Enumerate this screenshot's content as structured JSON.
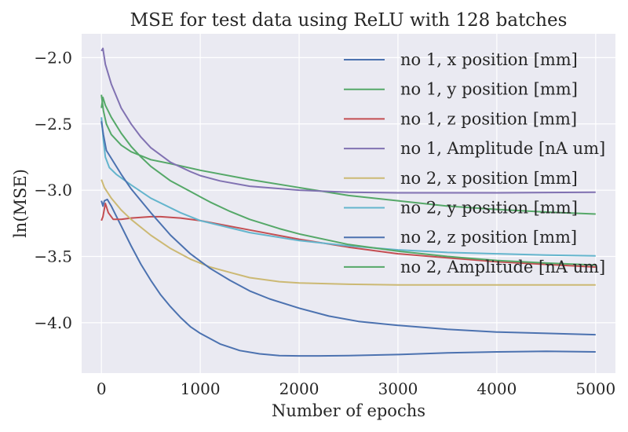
{
  "chart_data": {
    "type": "line",
    "title": "MSE for test data using ReLU with 128 batches",
    "xlabel": "Number of epochs",
    "ylabel": "ln(MSE)",
    "xlim": [
      -200,
      5200
    ],
    "ylim": [
      -4.38,
      -1.82
    ],
    "xticks": [
      0,
      1000,
      2000,
      3000,
      4000,
      5000
    ],
    "xtick_labels": [
      "0",
      "1000",
      "2000",
      "3000",
      "4000",
      "5000"
    ],
    "yticks": [
      -2.0,
      -2.5,
      -3.0,
      -3.5,
      -4.0
    ],
    "ytick_labels": [
      "−2.0",
      "−2.5",
      "−3.0",
      "−3.5",
      "−4.0"
    ],
    "grid": true,
    "legend_position": "upper right",
    "series": [
      {
        "name": "no 1, x position [mm]",
        "color": "#4c72b0",
        "points": [
          [
            0,
            -3.08
          ],
          [
            15,
            -3.12
          ],
          [
            30,
            -3.08
          ],
          [
            60,
            -3.07
          ],
          [
            100,
            -3.12
          ],
          [
            200,
            -3.27
          ],
          [
            300,
            -3.42
          ],
          [
            400,
            -3.56
          ],
          [
            500,
            -3.68
          ],
          [
            600,
            -3.79
          ],
          [
            700,
            -3.88
          ],
          [
            800,
            -3.96
          ],
          [
            900,
            -4.03
          ],
          [
            1000,
            -4.08
          ],
          [
            1200,
            -4.16
          ],
          [
            1400,
            -4.21
          ],
          [
            1600,
            -4.235
          ],
          [
            1800,
            -4.248
          ],
          [
            2000,
            -4.25
          ],
          [
            2200,
            -4.25
          ],
          [
            2500,
            -4.248
          ],
          [
            3000,
            -4.24
          ],
          [
            3500,
            -4.228
          ],
          [
            4000,
            -4.22
          ],
          [
            4500,
            -4.215
          ],
          [
            5000,
            -4.22
          ]
        ]
      },
      {
        "name": "no 1, y position [mm]",
        "color": "#55a868",
        "points": [
          [
            0,
            -2.28
          ],
          [
            20,
            -2.4
          ],
          [
            50,
            -2.5
          ],
          [
            100,
            -2.58
          ],
          [
            200,
            -2.66
          ],
          [
            300,
            -2.71
          ],
          [
            500,
            -2.77
          ],
          [
            700,
            -2.8
          ],
          [
            1000,
            -2.85
          ],
          [
            1500,
            -2.92
          ],
          [
            2000,
            -2.98
          ],
          [
            2500,
            -3.04
          ],
          [
            3000,
            -3.08
          ],
          [
            3500,
            -3.12
          ],
          [
            4000,
            -3.145
          ],
          [
            4500,
            -3.165
          ],
          [
            5000,
            -3.18
          ]
        ]
      },
      {
        "name": "no 1, z position [mm]",
        "color": "#c44e52",
        "points": [
          [
            0,
            -3.23
          ],
          [
            15,
            -3.2
          ],
          [
            40,
            -3.1
          ],
          [
            70,
            -3.17
          ],
          [
            120,
            -3.22
          ],
          [
            200,
            -3.22
          ],
          [
            300,
            -3.21
          ],
          [
            400,
            -3.205
          ],
          [
            500,
            -3.2
          ],
          [
            600,
            -3.2
          ],
          [
            800,
            -3.21
          ],
          [
            1000,
            -3.23
          ],
          [
            1500,
            -3.3
          ],
          [
            2000,
            -3.37
          ],
          [
            2500,
            -3.43
          ],
          [
            3000,
            -3.48
          ],
          [
            3500,
            -3.51
          ],
          [
            4000,
            -3.54
          ],
          [
            4500,
            -3.56
          ],
          [
            5000,
            -3.58
          ]
        ]
      },
      {
        "name": "no 1, Amplitude [nA um]",
        "color": "#8172b2",
        "points": [
          [
            0,
            -1.95
          ],
          [
            15,
            -1.93
          ],
          [
            40,
            -2.05
          ],
          [
            100,
            -2.2
          ],
          [
            200,
            -2.38
          ],
          [
            300,
            -2.5
          ],
          [
            400,
            -2.6
          ],
          [
            500,
            -2.68
          ],
          [
            700,
            -2.79
          ],
          [
            900,
            -2.86
          ],
          [
            1000,
            -2.89
          ],
          [
            1200,
            -2.93
          ],
          [
            1500,
            -2.97
          ],
          [
            2000,
            -3.0
          ],
          [
            2500,
            -3.015
          ],
          [
            3000,
            -3.02
          ],
          [
            4000,
            -3.02
          ],
          [
            5000,
            -3.015
          ]
        ]
      },
      {
        "name": "no 2, x position [mm]",
        "color": "#ccb974",
        "points": [
          [
            0,
            -2.92
          ],
          [
            30,
            -2.98
          ],
          [
            100,
            -3.06
          ],
          [
            200,
            -3.15
          ],
          [
            300,
            -3.22
          ],
          [
            500,
            -3.34
          ],
          [
            700,
            -3.44
          ],
          [
            900,
            -3.52
          ],
          [
            1100,
            -3.58
          ],
          [
            1300,
            -3.62
          ],
          [
            1500,
            -3.66
          ],
          [
            1800,
            -3.69
          ],
          [
            2000,
            -3.7
          ],
          [
            2500,
            -3.71
          ],
          [
            3000,
            -3.715
          ],
          [
            4000,
            -3.715
          ],
          [
            5000,
            -3.715
          ]
        ]
      },
      {
        "name": "no 2, y position [mm]",
        "color": "#64b5cd",
        "points": [
          [
            0,
            -2.45
          ],
          [
            20,
            -2.62
          ],
          [
            40,
            -2.75
          ],
          [
            80,
            -2.83
          ],
          [
            150,
            -2.88
          ],
          [
            300,
            -2.96
          ],
          [
            500,
            -3.06
          ],
          [
            800,
            -3.17
          ],
          [
            1000,
            -3.23
          ],
          [
            1500,
            -3.32
          ],
          [
            2000,
            -3.38
          ],
          [
            2500,
            -3.42
          ],
          [
            3000,
            -3.45
          ],
          [
            3500,
            -3.47
          ],
          [
            4000,
            -3.48
          ],
          [
            4500,
            -3.49
          ],
          [
            5000,
            -3.495
          ]
        ]
      },
      {
        "name": "no 2, z position [mm]",
        "color": "#4c72b0",
        "points": [
          [
            0,
            -2.48
          ],
          [
            20,
            -2.58
          ],
          [
            50,
            -2.7
          ],
          [
            100,
            -2.76
          ],
          [
            200,
            -2.88
          ],
          [
            300,
            -2.99
          ],
          [
            500,
            -3.17
          ],
          [
            700,
            -3.34
          ],
          [
            900,
            -3.48
          ],
          [
            1100,
            -3.59
          ],
          [
            1300,
            -3.68
          ],
          [
            1500,
            -3.76
          ],
          [
            1700,
            -3.82
          ],
          [
            2000,
            -3.89
          ],
          [
            2300,
            -3.95
          ],
          [
            2600,
            -3.99
          ],
          [
            3000,
            -4.02
          ],
          [
            3500,
            -4.05
          ],
          [
            4000,
            -4.07
          ],
          [
            4500,
            -4.08
          ],
          [
            5000,
            -4.09
          ]
        ]
      },
      {
        "name": "no 2, Amplitude [nA um]",
        "color": "#55a868",
        "points": [
          [
            0,
            -2.38
          ],
          [
            15,
            -2.3
          ],
          [
            40,
            -2.36
          ],
          [
            100,
            -2.45
          ],
          [
            200,
            -2.57
          ],
          [
            300,
            -2.67
          ],
          [
            400,
            -2.75
          ],
          [
            500,
            -2.82
          ],
          [
            700,
            -2.93
          ],
          [
            900,
            -3.01
          ],
          [
            1100,
            -3.09
          ],
          [
            1300,
            -3.16
          ],
          [
            1500,
            -3.22
          ],
          [
            1800,
            -3.29
          ],
          [
            2000,
            -3.33
          ],
          [
            2500,
            -3.41
          ],
          [
            3000,
            -3.46
          ],
          [
            3500,
            -3.5
          ],
          [
            4000,
            -3.53
          ],
          [
            4500,
            -3.55
          ],
          [
            5000,
            -3.565
          ]
        ]
      }
    ]
  }
}
